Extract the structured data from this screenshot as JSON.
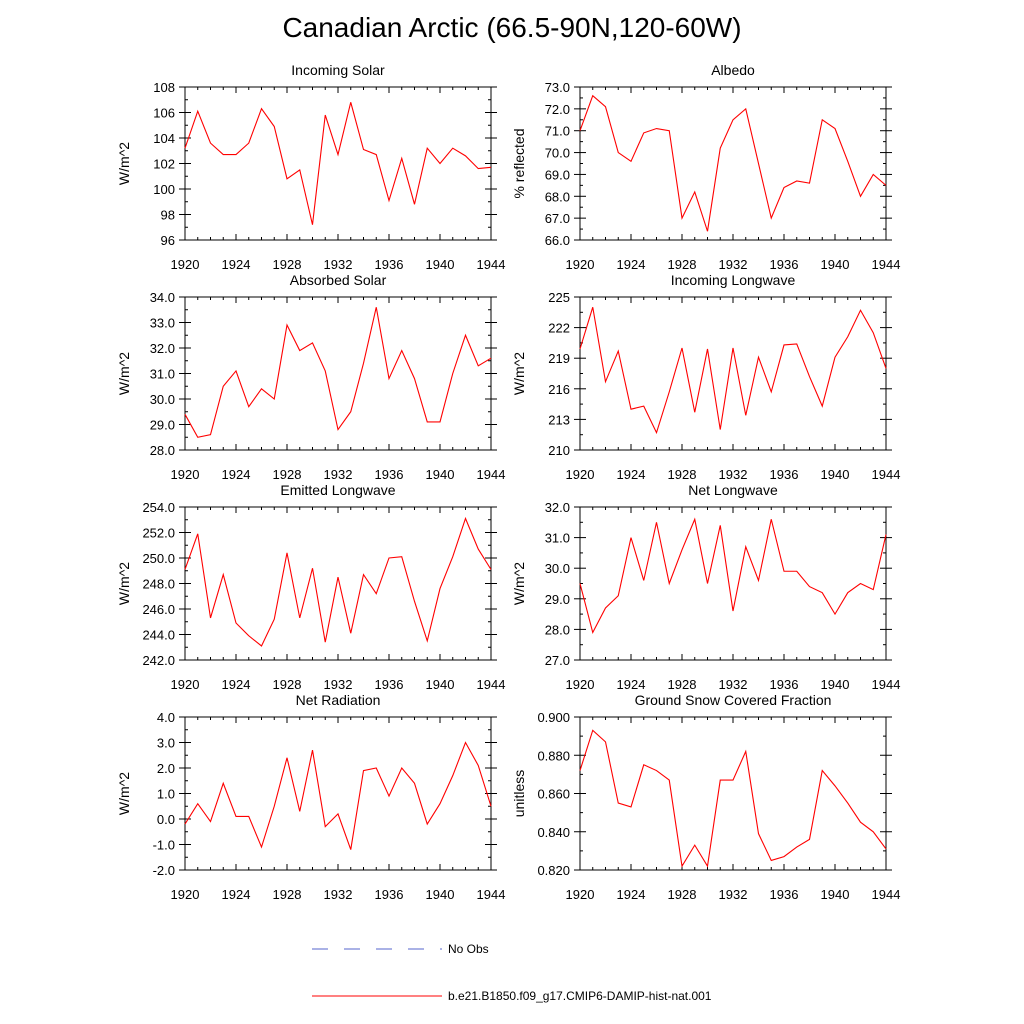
{
  "title": "Canadian Arctic (66.5-90N,120-60W)",
  "legend": {
    "entries": [
      {
        "label": "No Obs",
        "color": "#5566cc",
        "style": "dashed"
      },
      {
        "label": "b.e21.B1850.f09_g17.CMIP6-DAMIP-hist-nat.001",
        "color": "#ff0000",
        "style": "solid"
      }
    ]
  },
  "chart_data": [
    {
      "type": "line",
      "title": "Incoming Solar",
      "ylabel": "W/m^2",
      "xlim": [
        1920,
        1944
      ],
      "ylim": [
        96,
        108
      ],
      "xticks": [
        1920,
        1924,
        1928,
        1932,
        1936,
        1940,
        1944
      ],
      "yticks": [
        96,
        98,
        100,
        102,
        104,
        106,
        108
      ],
      "ytick_labels": [
        "96",
        "98",
        "100",
        "102",
        "104",
        "106",
        "108"
      ],
      "x": [
        1920,
        1921,
        1922,
        1923,
        1924,
        1925,
        1926,
        1927,
        1928,
        1929,
        1930,
        1931,
        1932,
        1933,
        1934,
        1935,
        1936,
        1937,
        1938,
        1939,
        1940,
        1941,
        1942,
        1943,
        1944
      ],
      "series": [
        {
          "name": "b.e21.B1850.f09_g17.CMIP6-DAMIP-hist-nat.001",
          "color": "#ff0000",
          "values": [
            103.2,
            106.1,
            103.6,
            102.7,
            102.7,
            103.6,
            106.3,
            104.9,
            100.8,
            101.5,
            97.2,
            105.8,
            102.7,
            106.8,
            103.1,
            102.7,
            99.1,
            102.4,
            98.8,
            103.2,
            102.0,
            103.2,
            102.6,
            101.6,
            101.7
          ]
        }
      ]
    },
    {
      "type": "line",
      "title": "Albedo",
      "ylabel": "% reflected",
      "xlim": [
        1920,
        1944
      ],
      "ylim": [
        66,
        73
      ],
      "xticks": [
        1920,
        1924,
        1928,
        1932,
        1936,
        1940,
        1944
      ],
      "yticks": [
        66,
        67,
        68,
        69,
        70,
        71,
        72,
        73
      ],
      "ytick_labels": [
        "66.0",
        "67.0",
        "68.0",
        "69.0",
        "70.0",
        "71.0",
        "72.0",
        "73.0"
      ],
      "x": [
        1920,
        1921,
        1922,
        1923,
        1924,
        1925,
        1926,
        1927,
        1928,
        1929,
        1930,
        1931,
        1932,
        1933,
        1934,
        1935,
        1936,
        1937,
        1938,
        1939,
        1940,
        1941,
        1942,
        1943,
        1944
      ],
      "series": [
        {
          "name": "b.e21.B1850.f09_g17.CMIP6-DAMIP-hist-nat.001",
          "color": "#ff0000",
          "values": [
            71.0,
            72.6,
            72.1,
            70.0,
            69.6,
            70.9,
            71.1,
            71.0,
            67.0,
            68.2,
            66.4,
            70.2,
            71.5,
            72.0,
            69.5,
            67.0,
            68.4,
            68.7,
            68.6,
            71.5,
            71.1,
            69.6,
            68.0,
            69.0,
            68.5
          ]
        }
      ]
    },
    {
      "type": "line",
      "title": "Absorbed Solar",
      "ylabel": "W/m^2",
      "xlim": [
        1920,
        1944
      ],
      "ylim": [
        28,
        34
      ],
      "xticks": [
        1920,
        1924,
        1928,
        1932,
        1936,
        1940,
        1944
      ],
      "yticks": [
        28,
        29,
        30,
        31,
        32,
        33,
        34
      ],
      "ytick_labels": [
        "28.0",
        "29.0",
        "30.0",
        "31.0",
        "32.0",
        "33.0",
        "34.0"
      ],
      "x": [
        1920,
        1921,
        1922,
        1923,
        1924,
        1925,
        1926,
        1927,
        1928,
        1929,
        1930,
        1931,
        1932,
        1933,
        1934,
        1935,
        1936,
        1937,
        1938,
        1939,
        1940,
        1941,
        1942,
        1943,
        1944
      ],
      "series": [
        {
          "name": "b.e21.B1850.f09_g17.CMIP6-DAMIP-hist-nat.001",
          "color": "#ff0000",
          "values": [
            29.4,
            28.5,
            28.6,
            30.5,
            31.1,
            29.7,
            30.4,
            30.0,
            32.9,
            31.9,
            32.2,
            31.1,
            28.8,
            29.5,
            31.4,
            33.6,
            30.8,
            31.9,
            30.8,
            29.1,
            29.1,
            31.0,
            32.5,
            31.3,
            31.6
          ]
        }
      ]
    },
    {
      "type": "line",
      "title": "Incoming Longwave",
      "ylabel": "W/m^2",
      "xlim": [
        1920,
        1944
      ],
      "ylim": [
        210,
        225
      ],
      "xticks": [
        1920,
        1924,
        1928,
        1932,
        1936,
        1940,
        1944
      ],
      "yticks": [
        210,
        213,
        216,
        219,
        222,
        225
      ],
      "ytick_labels": [
        "210",
        "213",
        "216",
        "219",
        "222",
        "225"
      ],
      "x": [
        1920,
        1921,
        1922,
        1923,
        1924,
        1925,
        1926,
        1927,
        1928,
        1929,
        1930,
        1931,
        1932,
        1933,
        1934,
        1935,
        1936,
        1937,
        1938,
        1939,
        1940,
        1941,
        1942,
        1943,
        1944
      ],
      "series": [
        {
          "name": "b.e21.B1850.f09_g17.CMIP6-DAMIP-hist-nat.001",
          "color": "#ff0000",
          "values": [
            219.9,
            224.0,
            216.7,
            219.7,
            214.0,
            214.3,
            211.7,
            215.7,
            220.0,
            213.7,
            219.9,
            212.0,
            220.0,
            213.4,
            219.1,
            215.7,
            220.3,
            220.4,
            217.2,
            214.3,
            219.1,
            221.1,
            223.7,
            221.5,
            218.0
          ]
        }
      ]
    },
    {
      "type": "line",
      "title": "Emitted Longwave",
      "ylabel": "W/m^2",
      "xlim": [
        1920,
        1944
      ],
      "ylim": [
        242,
        254
      ],
      "xticks": [
        1920,
        1924,
        1928,
        1932,
        1936,
        1940,
        1944
      ],
      "yticks": [
        242,
        244,
        246,
        248,
        250,
        252,
        254
      ],
      "ytick_labels": [
        "242.0",
        "244.0",
        "246.0",
        "248.0",
        "250.0",
        "252.0",
        "254.0"
      ],
      "x": [
        1920,
        1921,
        1922,
        1923,
        1924,
        1925,
        1926,
        1927,
        1928,
        1929,
        1930,
        1931,
        1932,
        1933,
        1934,
        1935,
        1936,
        1937,
        1938,
        1939,
        1940,
        1941,
        1942,
        1943,
        1944
      ],
      "series": [
        {
          "name": "b.e21.B1850.f09_g17.CMIP6-DAMIP-hist-nat.001",
          "color": "#ff0000",
          "values": [
            249.1,
            251.9,
            245.3,
            248.7,
            244.9,
            243.9,
            243.1,
            245.2,
            250.4,
            245.3,
            249.2,
            243.4,
            248.5,
            244.1,
            248.7,
            247.2,
            250.0,
            250.1,
            246.6,
            243.5,
            247.6,
            250.1,
            253.1,
            250.7,
            249.1
          ]
        }
      ]
    },
    {
      "type": "line",
      "title": "Net Longwave",
      "ylabel": "W/m^2",
      "xlim": [
        1920,
        1944
      ],
      "ylim": [
        27,
        32
      ],
      "xticks": [
        1920,
        1924,
        1928,
        1932,
        1936,
        1940,
        1944
      ],
      "yticks": [
        27,
        28,
        29,
        30,
        31,
        32
      ],
      "ytick_labels": [
        "27.0",
        "28.0",
        "29.0",
        "30.0",
        "31.0",
        "32.0"
      ],
      "x": [
        1920,
        1921,
        1922,
        1923,
        1924,
        1925,
        1926,
        1927,
        1928,
        1929,
        1930,
        1931,
        1932,
        1933,
        1934,
        1935,
        1936,
        1937,
        1938,
        1939,
        1940,
        1941,
        1942,
        1943,
        1944
      ],
      "series": [
        {
          "name": "b.e21.B1850.f09_g17.CMIP6-DAMIP-hist-nat.001",
          "color": "#ff0000",
          "values": [
            29.5,
            27.9,
            28.7,
            29.1,
            31.0,
            29.6,
            31.5,
            29.5,
            30.6,
            31.6,
            29.5,
            31.4,
            28.6,
            30.7,
            29.6,
            31.6,
            29.9,
            29.9,
            29.4,
            29.2,
            28.5,
            29.2,
            29.5,
            29.3,
            31.1
          ]
        }
      ]
    },
    {
      "type": "line",
      "title": "Net Radiation",
      "ylabel": "W/m^2",
      "xlim": [
        1920,
        1944
      ],
      "ylim": [
        -2,
        4
      ],
      "xticks": [
        1920,
        1924,
        1928,
        1932,
        1936,
        1940,
        1944
      ],
      "yticks": [
        -2,
        -1,
        0,
        1,
        2,
        3,
        4
      ],
      "ytick_labels": [
        "-2.0",
        "-1.0",
        "0.0",
        "1.0",
        "2.0",
        "3.0",
        "4.0"
      ],
      "x": [
        1920,
        1921,
        1922,
        1923,
        1924,
        1925,
        1926,
        1927,
        1928,
        1929,
        1930,
        1931,
        1932,
        1933,
        1934,
        1935,
        1936,
        1937,
        1938,
        1939,
        1940,
        1941,
        1942,
        1943,
        1944
      ],
      "series": [
        {
          "name": "b.e21.B1850.f09_g17.CMIP6-DAMIP-hist-nat.001",
          "color": "#ff0000",
          "values": [
            -0.2,
            0.6,
            -0.1,
            1.4,
            0.1,
            0.1,
            -1.1,
            0.5,
            2.4,
            0.3,
            2.7,
            -0.3,
            0.2,
            -1.2,
            1.9,
            2.0,
            0.9,
            2.0,
            1.4,
            -0.2,
            0.6,
            1.7,
            3.0,
            2.1,
            0.5
          ]
        }
      ]
    },
    {
      "type": "line",
      "title": "Ground Snow Covered Fraction",
      "ylabel": "unitless",
      "xlim": [
        1920,
        1944
      ],
      "ylim": [
        0.82,
        0.9
      ],
      "xticks": [
        1920,
        1924,
        1928,
        1932,
        1936,
        1940,
        1944
      ],
      "yticks": [
        0.82,
        0.84,
        0.86,
        0.88,
        0.9
      ],
      "ytick_labels": [
        "0.820",
        "0.840",
        "0.860",
        "0.880",
        "0.900"
      ],
      "x": [
        1920,
        1921,
        1922,
        1923,
        1924,
        1925,
        1926,
        1927,
        1928,
        1929,
        1930,
        1931,
        1932,
        1933,
        1934,
        1935,
        1936,
        1937,
        1938,
        1939,
        1940,
        1941,
        1942,
        1943,
        1944
      ],
      "series": [
        {
          "name": "b.e21.B1850.f09_g17.CMIP6-DAMIP-hist-nat.001",
          "color": "#ff0000",
          "values": [
            0.872,
            0.893,
            0.887,
            0.855,
            0.853,
            0.875,
            0.872,
            0.867,
            0.822,
            0.833,
            0.822,
            0.867,
            0.867,
            0.882,
            0.839,
            0.825,
            0.827,
            0.832,
            0.836,
            0.872,
            0.864,
            0.855,
            0.845,
            0.84,
            0.831
          ]
        }
      ]
    }
  ]
}
